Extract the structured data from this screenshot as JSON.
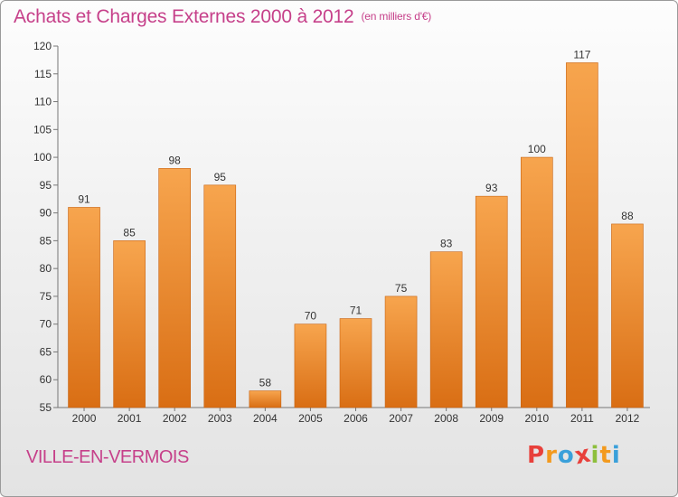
{
  "header": {
    "title": "Achats et Charges Externes 2000 à 2012",
    "unit": "(en milliers d'€)"
  },
  "footer": {
    "commune": "VILLE-EN-VERMOIS",
    "logo_letters": [
      "P",
      "r",
      "o",
      "x",
      "i",
      "t",
      "i"
    ],
    "logo_colors": [
      "#e8403b",
      "#f39a1e",
      "#3aa0da",
      "#e8403b",
      "#8dbf3c",
      "#f39a1e",
      "#3aa0da"
    ]
  },
  "colors": {
    "bar_light": "#f7a54e",
    "bar_dark": "#d96e14",
    "bar_edge": "#c8620f",
    "title": "#c6408a"
  },
  "chart_data": {
    "type": "bar",
    "title": "Achats et Charges Externes 2000 à 2012",
    "subtitle": "(en milliers d'€)",
    "categories": [
      "2000",
      "2001",
      "2002",
      "2003",
      "2004",
      "2005",
      "2006",
      "2007",
      "2008",
      "2009",
      "2010",
      "2011",
      "2012"
    ],
    "values": [
      91,
      85,
      98,
      95,
      58,
      70,
      71,
      75,
      83,
      93,
      100,
      117,
      88
    ],
    "ylim": [
      55,
      120
    ],
    "yticks": [
      55,
      60,
      65,
      70,
      75,
      80,
      85,
      90,
      95,
      100,
      105,
      110,
      115,
      120
    ],
    "grid": false,
    "data_labels": true
  }
}
